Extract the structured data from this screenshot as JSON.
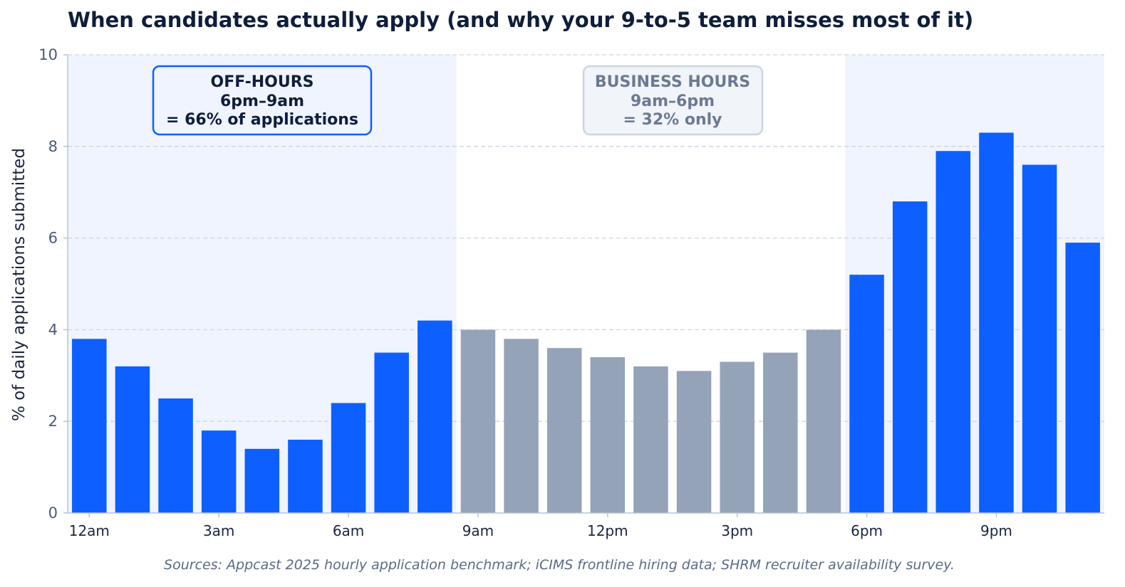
{
  "chart_data": {
    "type": "bar",
    "title": "When candidates actually apply (and why your 9-to-5 team misses most of it)",
    "ylabel": "% of daily applications submitted",
    "xlabel": "",
    "ylim": [
      0,
      10
    ],
    "yticks": [
      0,
      2,
      4,
      6,
      8,
      10
    ],
    "grid": "horizontal-dashed",
    "categories": [
      "0",
      "1",
      "2",
      "3",
      "4",
      "5",
      "6",
      "7",
      "8",
      "9",
      "10",
      "11",
      "12",
      "13",
      "14",
      "15",
      "16",
      "17",
      "18",
      "19",
      "20",
      "21",
      "22",
      "23"
    ],
    "xticks": [
      {
        "hour": 0,
        "label": "12am"
      },
      {
        "hour": 3,
        "label": "3am"
      },
      {
        "hour": 6,
        "label": "6am"
      },
      {
        "hour": 9,
        "label": "9am"
      },
      {
        "hour": 12,
        "label": "12pm"
      },
      {
        "hour": 15,
        "label": "3pm"
      },
      {
        "hour": 18,
        "label": "6pm"
      },
      {
        "hour": 21,
        "label": "9pm"
      }
    ],
    "values": [
      3.8,
      3.2,
      2.5,
      1.8,
      1.4,
      1.6,
      2.4,
      3.5,
      4.2,
      4.0,
      3.8,
      3.6,
      3.4,
      3.2,
      3.1,
      3.3,
      3.5,
      4.0,
      5.2,
      6.8,
      7.9,
      8.3,
      7.6,
      5.9
    ],
    "business_hours": [
      9,
      17
    ],
    "colors": {
      "off_hours_bar": "#0d5fff",
      "business_bar": "#94a3b8",
      "off_hours_shade": "#eff4ff",
      "grid": "#cbd5e1",
      "axis": "#b8c3d6",
      "off_box_border": "#0d5fff",
      "bus_box_border": "#cbd5e1"
    },
    "annotations": {
      "off_hours": [
        "OFF-HOURS",
        "6pm–9am",
        "= 66% of applications"
      ],
      "business_hours": [
        "BUSINESS HOURS",
        "9am–6pm",
        "= 32% only"
      ]
    }
  },
  "source_note": "Sources: Appcast 2025 hourly application benchmark; iCIMS frontline hiring data; SHRM recruiter availability survey."
}
